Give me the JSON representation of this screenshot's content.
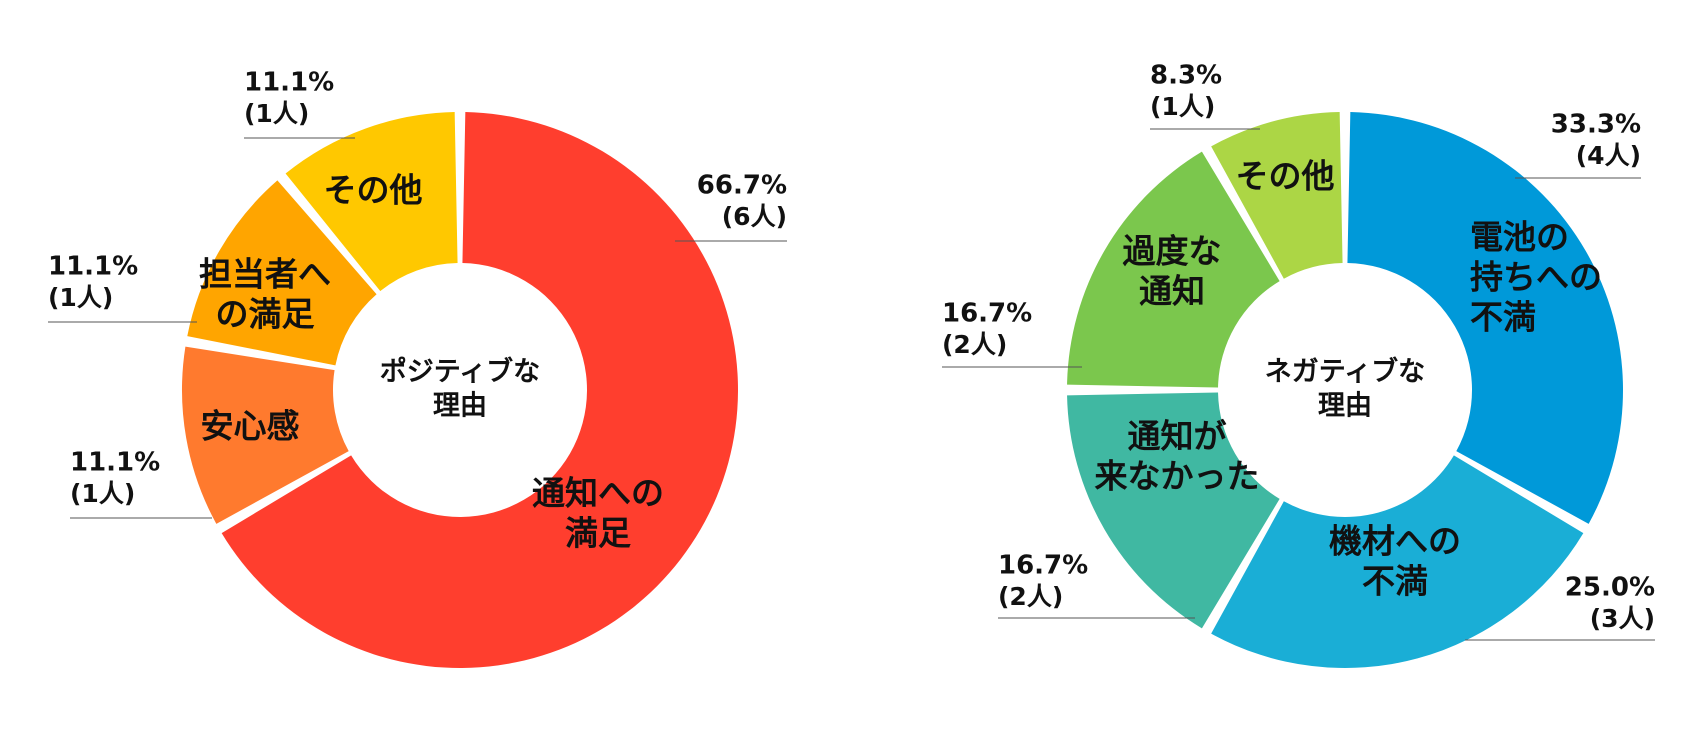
{
  "chart_data": [
    {
      "type": "pie",
      "center_label": [
        "ポジティブな",
        "理由"
      ],
      "slices": [
        {
          "label": [
            "通知への",
            "満足"
          ],
          "value": 66.7,
          "percent_label": "66.7%",
          "count_label": "(6人)",
          "color": "#FF3E2E"
        },
        {
          "label": [
            "安心感"
          ],
          "value": 11.1,
          "percent_label": "11.1%",
          "count_label": "(1人)",
          "color": "#FF7A2E"
        },
        {
          "label": [
            "担当者へ",
            "の満足"
          ],
          "value": 11.1,
          "percent_label": "11.1%",
          "count_label": "(1人)",
          "color": "#FFA500"
        },
        {
          "label": [
            "その他"
          ],
          "value": 11.1,
          "percent_label": "11.1%",
          "count_label": "(1人)",
          "color": "#FFC800"
        }
      ]
    },
    {
      "type": "pie",
      "center_label": [
        "ネガティブな",
        "理由"
      ],
      "slices": [
        {
          "label": [
            "電池の",
            "持ちへの",
            "不満"
          ],
          "value": 33.3,
          "percent_label": "33.3%",
          "count_label": "(4人)",
          "color": "#0099D9"
        },
        {
          "label": [
            "機材への",
            "不満"
          ],
          "value": 25.0,
          "percent_label": "25.0%",
          "count_label": "(3人)",
          "color": "#1AAED6"
        },
        {
          "label": [
            "通知が",
            "来なかった"
          ],
          "value": 16.7,
          "percent_label": "16.7%",
          "count_label": "(2人)",
          "color": "#40B8A2"
        },
        {
          "label": [
            "過度な",
            "通知"
          ],
          "value": 16.7,
          "percent_label": "16.7%",
          "count_label": "(2人)",
          "color": "#7BC74D"
        },
        {
          "label": [
            "その他"
          ],
          "value": 8.3,
          "percent_label": "8.3%",
          "count_label": "(1人)",
          "color": "#ACD645"
        }
      ]
    }
  ]
}
